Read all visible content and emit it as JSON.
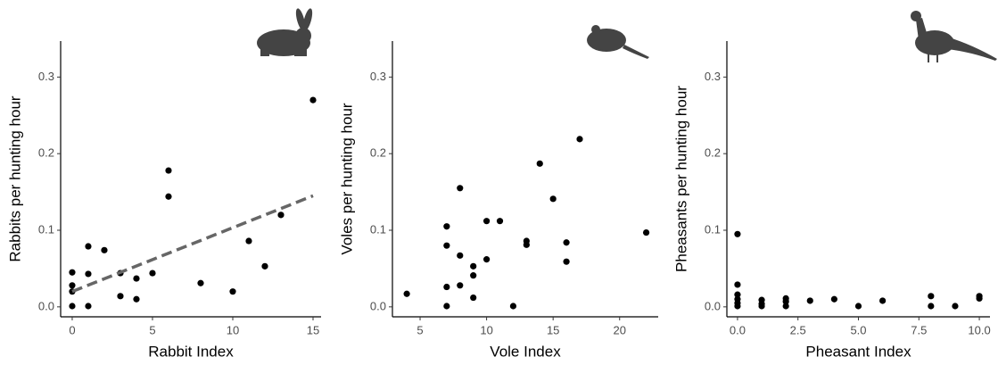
{
  "chart_data": [
    {
      "type": "scatter",
      "xlabel": "Rabbit Index",
      "ylabel": "Rabbits per hunting hour",
      "color": "#000000",
      "x": [
        0,
        0,
        0,
        0,
        1,
        1,
        1,
        2,
        3,
        3,
        4,
        4,
        5,
        6,
        6,
        8,
        10,
        11,
        12,
        13,
        15
      ],
      "y": [
        0.045,
        0.028,
        0.02,
        0.001,
        0.079,
        0.043,
        0.001,
        0.074,
        0.044,
        0.014,
        0.037,
        0.01,
        0.044,
        0.178,
        0.144,
        0.031,
        0.02,
        0.086,
        0.053,
        0.12,
        0.27
      ],
      "trend_line": {
        "x": [
          0,
          15
        ],
        "y": [
          0.02,
          0.145
        ],
        "color": "#666666"
      },
      "xlim": [
        -0.72,
        15.5
      ],
      "ylim": [
        -0.013,
        0.347
      ],
      "xticks": [
        0,
        5,
        10,
        15
      ],
      "yticks": [
        {
          "value": 0,
          "label": "0.0"
        },
        {
          "value": 0.1,
          "label": "0.1"
        },
        {
          "value": 0.2,
          "label": "0.2"
        },
        {
          "value": 0.3,
          "label": "0.3"
        }
      ]
    },
    {
      "type": "scatter",
      "xlabel": "Vole Index",
      "ylabel": "Voles per hunting hour",
      "color": "#000000",
      "x": [
        4,
        7,
        7,
        7,
        7,
        8,
        8,
        8,
        9,
        9,
        9,
        10,
        10,
        11,
        12,
        13,
        13,
        14,
        15,
        16,
        16,
        17,
        22
      ],
      "y": [
        0.017,
        0.105,
        0.08,
        0.026,
        0.001,
        0.155,
        0.067,
        0.028,
        0.053,
        0.041,
        0.012,
        0.112,
        0.062,
        0.112,
        0.001,
        0.086,
        0.081,
        0.187,
        0.141,
        0.084,
        0.059,
        0.219,
        0.097
      ],
      "xlim": [
        2.92,
        22.9
      ],
      "ylim": [
        -0.013,
        0.347
      ],
      "xticks": [
        5,
        10,
        15,
        20
      ],
      "yticks": [
        {
          "value": 0,
          "label": "0.0"
        },
        {
          "value": 0.1,
          "label": "0.1"
        },
        {
          "value": 0.2,
          "label": "0.2"
        },
        {
          "value": 0.3,
          "label": "0.3"
        }
      ]
    },
    {
      "type": "scatter",
      "xlabel": "Pheasant Index",
      "ylabel": "Pheasants per hunting hour",
      "color": "#000000",
      "x": [
        0,
        0,
        0,
        0,
        0,
        0,
        1,
        1,
        1,
        2,
        2,
        2,
        3,
        4,
        5,
        6,
        8,
        8,
        9,
        10,
        10
      ],
      "y": [
        0.095,
        0.029,
        0.016,
        0.01,
        0.005,
        0.001,
        0.009,
        0.004,
        0.001,
        0.011,
        0.007,
        0.001,
        0.008,
        0.01,
        0.001,
        0.008,
        0.014,
        0.001,
        0.001,
        0.014,
        0.011
      ],
      "xlim": [
        -0.44,
        10.44
      ],
      "ylim": [
        -0.013,
        0.347
      ],
      "xticks": [
        {
          "value": 0,
          "label": "0.0"
        },
        {
          "value": 2.5,
          "label": "2.5"
        },
        {
          "value": 5,
          "label": "5.0"
        },
        {
          "value": 7.5,
          "label": "7.5"
        },
        {
          "value": 10,
          "label": "10.0"
        }
      ],
      "yticks": [
        {
          "value": 0,
          "label": "0.0"
        },
        {
          "value": 0.1,
          "label": "0.1"
        },
        {
          "value": 0.2,
          "label": "0.2"
        },
        {
          "value": 0.3,
          "label": "0.3"
        }
      ]
    }
  ]
}
